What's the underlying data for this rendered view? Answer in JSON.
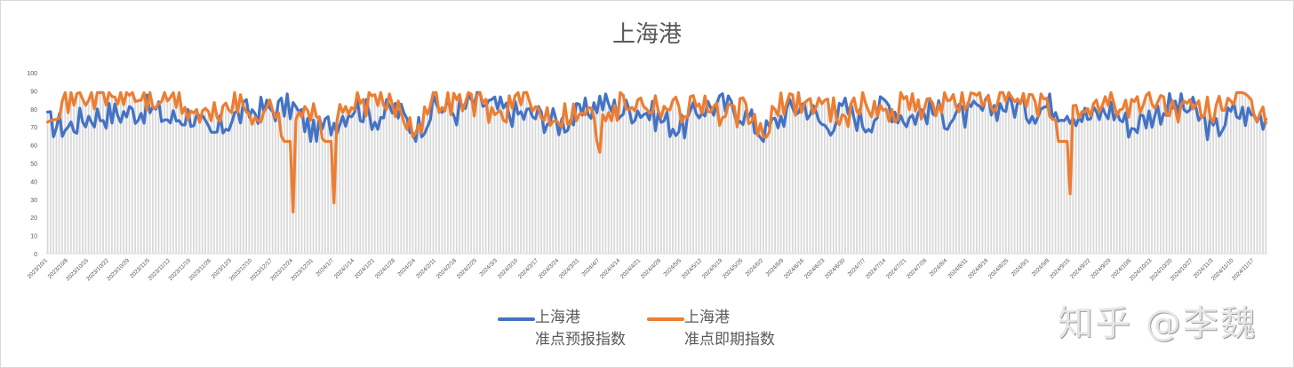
{
  "chart_data": {
    "type": "line",
    "title": "上海港",
    "xlabel": "",
    "ylabel": "",
    "ylim": [
      0,
      100
    ],
    "yticks": [
      0,
      10,
      20,
      30,
      40,
      50,
      60,
      70,
      80,
      90,
      100
    ],
    "grid": false,
    "legend_position": "bottom",
    "x_start": "2023/10/1",
    "x_step_days": 1,
    "x_tick_every_days": 7,
    "tick_labels": [
      "2023/10/1",
      "2023/10/8",
      "2023/10/15",
      "2023/10/22",
      "2023/10/29",
      "2023/11/5",
      "2023/11/12",
      "2023/11/19",
      "2023/11/26",
      "2023/12/3",
      "2023/12/10",
      "2023/12/17",
      "2023/12/24",
      "2023/12/31",
      "2024/1/7",
      "2024/1/14",
      "2024/1/21",
      "2024/1/28",
      "2024/2/4",
      "2024/2/11",
      "2024/2/18",
      "2024/2/25",
      "2024/3/3",
      "2024/3/10",
      "2024/3/17",
      "2024/3/24",
      "2024/3/31",
      "2024/4/7",
      "2024/4/14",
      "2024/4/21",
      "2024/4/28",
      "2024/5/5",
      "2024/5/12",
      "2024/5/19",
      "2024/5/26",
      "2024/6/2",
      "2024/6/9",
      "2024/6/16",
      "2024/6/23",
      "2024/6/30",
      "2024/7/7",
      "2024/7/14",
      "2024/7/21",
      "2024/7/28",
      "2024/8/4",
      "2024/8/11",
      "2024/8/18",
      "2024/8/25",
      "2024/9/1",
      "2024/9/8",
      "2024/9/15",
      "2024/9/22",
      "2024/9/29",
      "2024/10/6",
      "2024/10/13",
      "2024/10/20",
      "2024/10/27",
      "2024/11/3",
      "2024/11/10",
      "2024/11/17"
    ],
    "series": [
      {
        "name": "上海港 准点预报指数",
        "color": "#4472c4",
        "weekly_values": [
          72,
          70,
          76,
          77,
          78,
          80,
          74,
          77,
          64,
          75,
          79,
          80,
          81,
          66,
          73,
          82,
          75,
          80,
          68,
          82,
          78,
          85,
          80,
          77,
          76,
          72,
          76,
          84,
          79,
          80,
          74,
          69,
          81,
          82,
          78,
          66,
          77,
          83,
          70,
          80,
          72,
          83,
          75,
          79,
          76,
          76,
          80,
          83,
          79,
          82,
          79,
          75,
          80,
          70,
          77,
          82,
          79,
          67,
          78,
          76
        ]
      },
      {
        "name": "上海港 准点即期指数",
        "color": "#ed7d31",
        "weekly_values": [
          80,
          85,
          88,
          86,
          88,
          84,
          87,
          78,
          75,
          84,
          76,
          84,
          23,
          78,
          28,
          82,
          84,
          82,
          70,
          86,
          84,
          84,
          76,
          86,
          79,
          77,
          80,
          56,
          85,
          84,
          83,
          80,
          85,
          74,
          79,
          66,
          84,
          84,
          82,
          77,
          84,
          76,
          86,
          80,
          84,
          84,
          86,
          84,
          83,
          80,
          33,
          84,
          84,
          80,
          86,
          80,
          78,
          80,
          88,
          76
        ]
      }
    ],
    "notes": "Daily bars (light gray) span every day; lines are daily series sampled weekly here."
  },
  "legend": {
    "items": [
      {
        "line1": "上海港",
        "line2": "准点预报指数",
        "color": "#4472c4"
      },
      {
        "line1": "上海港",
        "line2": "准点即期指数",
        "color": "#ed7d31"
      }
    ]
  },
  "watermark": "知乎 @李魏",
  "colors": {
    "axis_text": "#595959",
    "bars": "#d9d9d9",
    "forecast": "#4472c4",
    "spot": "#ed7d31"
  }
}
